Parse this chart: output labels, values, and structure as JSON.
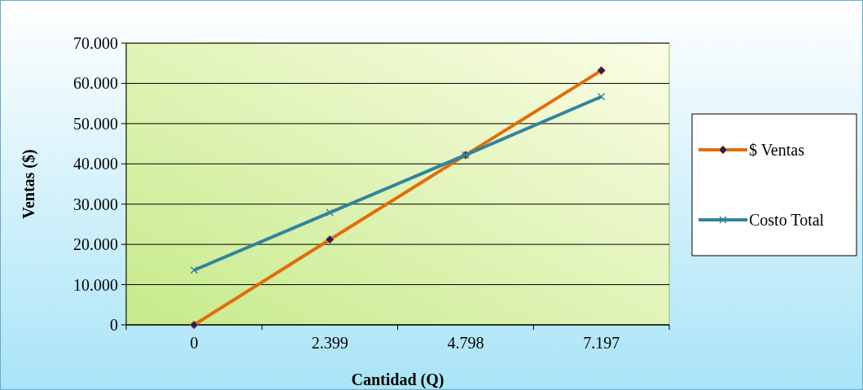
{
  "chart_data": {
    "type": "line",
    "xlabel": "Cantidad (Q)",
    "ylabel": "Ventas ($)",
    "categories": [
      "0",
      "2.399",
      "4.798",
      "7.197"
    ],
    "series": [
      {
        "name": "$ Ventas",
        "color": "#e36c0a",
        "values": [
          0,
          21200,
          42200,
          63200
        ],
        "marker": "diamond"
      },
      {
        "name": "Costo Total",
        "color": "#31859c",
        "values": [
          13600,
          27900,
          42200,
          56700
        ],
        "marker": "cross"
      }
    ],
    "ylim": [
      0,
      70000
    ],
    "yticks": [
      {
        "value": 0,
        "label": "0"
      },
      {
        "value": 10000,
        "label": "10.000"
      },
      {
        "value": 20000,
        "label": "20.000"
      },
      {
        "value": 30000,
        "label": "30.000"
      },
      {
        "value": 40000,
        "label": "40.000"
      },
      {
        "value": 50000,
        "label": "50.000"
      },
      {
        "value": 60000,
        "label": "60.000"
      },
      {
        "value": 70000,
        "label": "70.000"
      }
    ],
    "grid": "y",
    "legend": "right"
  }
}
